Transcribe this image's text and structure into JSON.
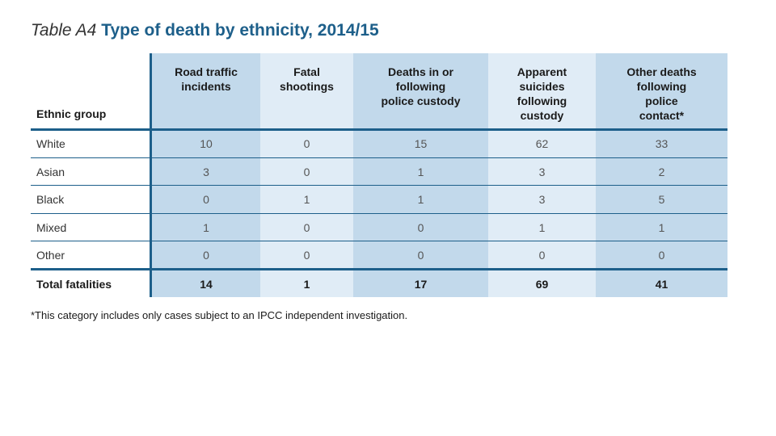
{
  "title": {
    "lead": "Table A4",
    "main": "Type of death by ethnicity, 2014/15"
  },
  "table": {
    "group_header": "Ethnic group",
    "columns": [
      "Road traffic\nincidents",
      "Fatal\nshootings",
      "Deaths in or\nfollowing\npolice custody",
      "Apparent\nsuicides\nfollowing\ncustody",
      "Other deaths\nfollowing\npolice\ncontact*"
    ],
    "rows": [
      {
        "group": "White",
        "values": [
          "10",
          "0",
          "15",
          "62",
          "33"
        ]
      },
      {
        "group": "Asian",
        "values": [
          "3",
          "0",
          "1",
          "3",
          "2"
        ]
      },
      {
        "group": "Black",
        "values": [
          "0",
          "1",
          "1",
          "3",
          "5"
        ]
      },
      {
        "group": "Mixed",
        "values": [
          "1",
          "0",
          "0",
          "1",
          "1"
        ]
      },
      {
        "group": "Other",
        "values": [
          "0",
          "0",
          "0",
          "0",
          "0"
        ]
      }
    ],
    "total": {
      "group": "Total fatalities",
      "values": [
        "14",
        "1",
        "17",
        "69",
        "41"
      ]
    }
  },
  "footnote": "*This category includes only cases subject to an IPCC independent investigation.",
  "colors": {
    "accent": "#1d5f8a",
    "band_dark": "#c2d9eb",
    "band_light": "#e0ecf6"
  }
}
